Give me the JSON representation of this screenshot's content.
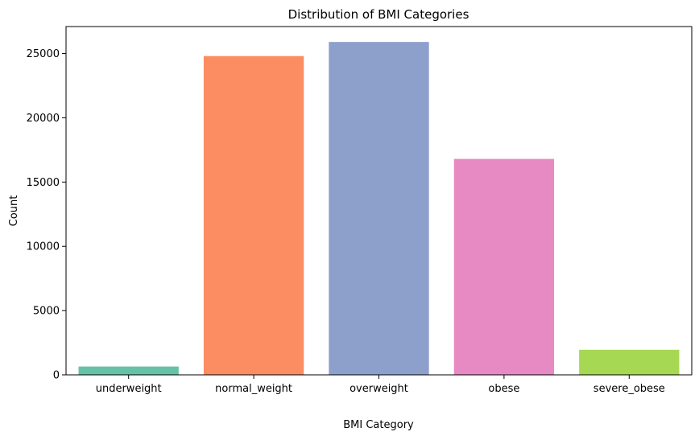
{
  "chart_data": {
    "type": "bar",
    "title": "Distribution of BMI Categories",
    "xlabel": "BMI Category",
    "ylabel": "Count",
    "categories": [
      "underweight",
      "normal_weight",
      "overweight",
      "obese",
      "severe_obese"
    ],
    "values": [
      650,
      24800,
      25900,
      16800,
      1950
    ],
    "colors": [
      "#66c2a5",
      "#fc8d62",
      "#8da0cb",
      "#e78ac3",
      "#a6d854"
    ],
    "ylim": [
      0,
      27100
    ],
    "yticks": [
      0,
      5000,
      10000,
      15000,
      20000,
      25000
    ],
    "ytick_labels": [
      "0",
      "5000",
      "10000",
      "15000",
      "20000",
      "25000"
    ],
    "grid": false,
    "legend": "none"
  }
}
